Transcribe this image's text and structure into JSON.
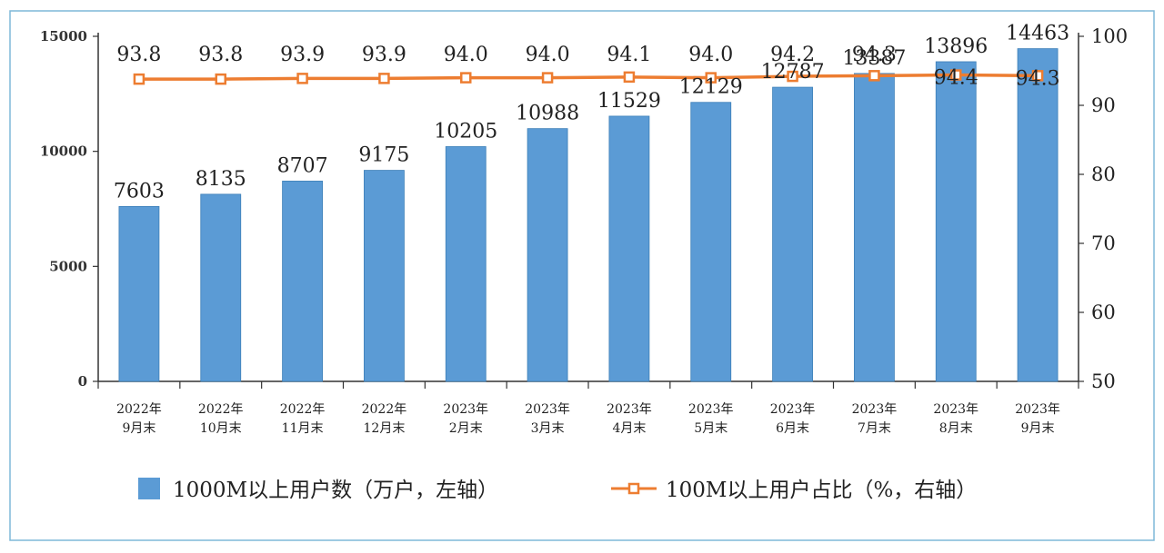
{
  "chart_data": {
    "type": "bar",
    "categories": [
      [
        "2022年",
        "9月末"
      ],
      [
        "2022年",
        "10月末"
      ],
      [
        "2022年",
        "11月末"
      ],
      [
        "2022年",
        "12月末"
      ],
      [
        "2023年",
        "2月末"
      ],
      [
        "2023年",
        "3月末"
      ],
      [
        "2023年",
        "4月末"
      ],
      [
        "2023年",
        "5月末"
      ],
      [
        "2023年",
        "6月末"
      ],
      [
        "2023年",
        "7月末"
      ],
      [
        "2023年",
        "8月末"
      ],
      [
        "2023年",
        "9月末"
      ]
    ],
    "series": [
      {
        "name": "1000M以上用户数（万户，左轴）",
        "type": "bar",
        "axis": "left",
        "color": "#5B9BD5",
        "values": [
          7603,
          8135,
          8707,
          9175,
          10205,
          10988,
          11529,
          12129,
          12787,
          13387,
          13896,
          14463
        ]
      },
      {
        "name": "100M以上用户占比（%，右轴）",
        "type": "line",
        "axis": "right",
        "color": "#ED7D31",
        "values": [
          93.8,
          93.8,
          93.9,
          93.9,
          94.0,
          94.0,
          94.1,
          94.0,
          94.2,
          94.3,
          94.4,
          94.3
        ]
      }
    ],
    "y_left": {
      "min": 0,
      "max": 15000,
      "ticks": [
        0,
        5000,
        10000,
        15000
      ]
    },
    "y_right": {
      "min": 50,
      "max": 100,
      "ticks": [
        50,
        60,
        70,
        80,
        90,
        100
      ]
    },
    "legend_position": "bottom",
    "grid": false
  }
}
